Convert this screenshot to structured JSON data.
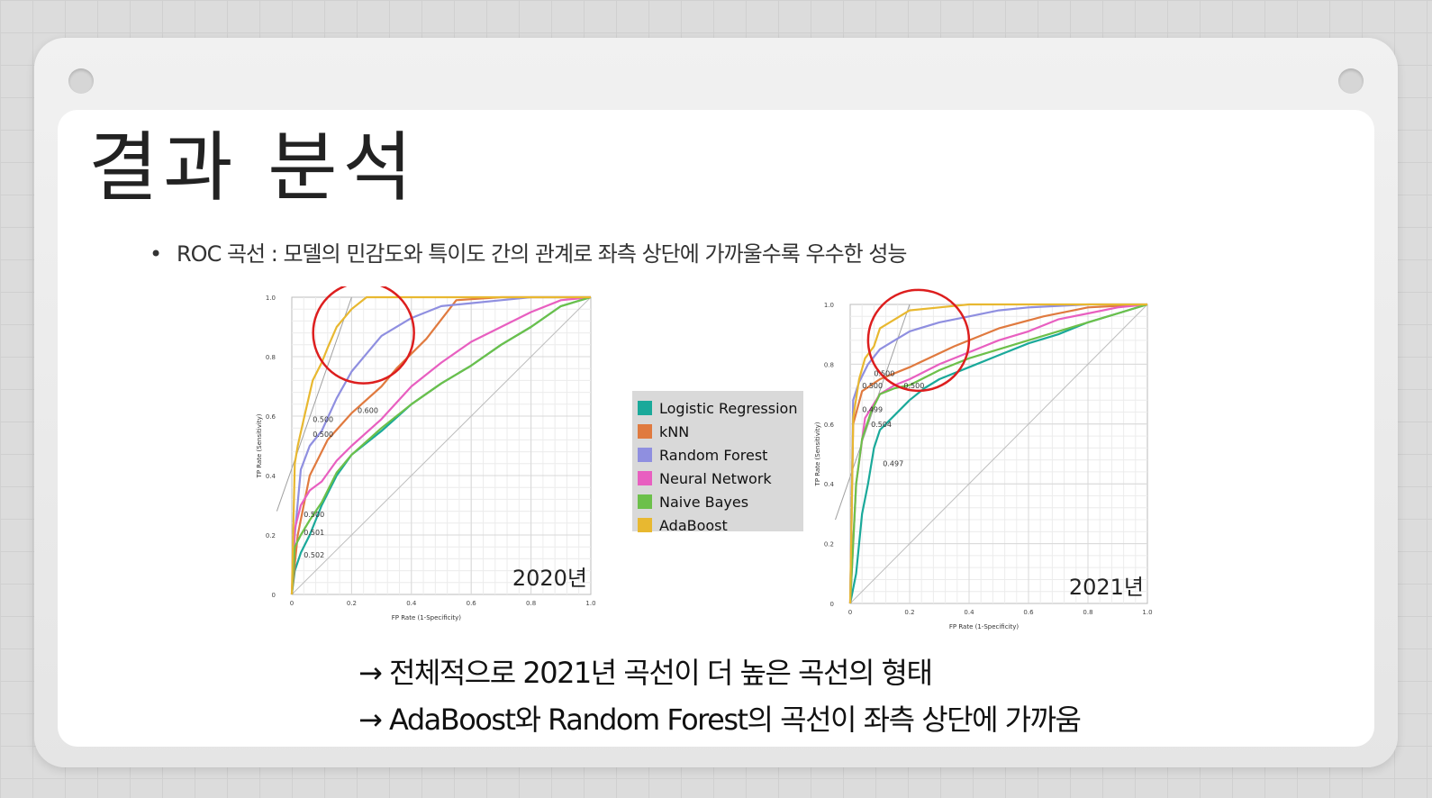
{
  "slide": {
    "title": "결과 분석",
    "bullet": "ROC 곡선 : 모델의 민감도와 특이도 간의 관계로 좌측 상단에 가까울수록 우수한 성능",
    "conclusions": [
      "→ 전체적으로 2021년 곡선이 더 높은 곡선의 형태",
      "→ AdaBoost와 Random Forest의 곡선이 좌측 상단에 가까움"
    ]
  },
  "legend": [
    {
      "label": "Logistic Regression",
      "color": "#1aa99a"
    },
    {
      "label": "kNN",
      "color": "#e07a3f"
    },
    {
      "label": "Random Forest",
      "color": "#8f8fe0"
    },
    {
      "label": "Neural Network",
      "color": "#e85fc0"
    },
    {
      "label": "Naive Bayes",
      "color": "#6cc04a"
    },
    {
      "label": "AdaBoost",
      "color": "#e8b830"
    }
  ],
  "highlight_color": "#dd1e1e",
  "chart_data": [
    {
      "type": "line",
      "year_label": "2020년",
      "xlabel": "FP Rate (1-Specificity)",
      "ylabel": "TP Rate (Sensitivity)",
      "xlim": [
        0,
        1
      ],
      "ylim": [
        0,
        1
      ],
      "xticks": [
        "0",
        "0.2",
        "0.4",
        "0.6",
        "0.8",
        "1.0"
      ],
      "yticks": [
        "0",
        "0.2",
        "0.4",
        "0.6",
        "0.8",
        "1.0"
      ],
      "grid": true,
      "annotations": [
        {
          "text": "0.600",
          "x": 0.22,
          "y": 0.61
        },
        {
          "text": "0.500",
          "x": 0.07,
          "y": 0.58
        },
        {
          "text": "0.500",
          "x": 0.07,
          "y": 0.53
        },
        {
          "text": "0.500",
          "x": 0.04,
          "y": 0.26
        },
        {
          "text": "0.501",
          "x": 0.04,
          "y": 0.2
        },
        {
          "text": "0.502",
          "x": 0.04,
          "y": 0.125
        }
      ],
      "series": [
        {
          "name": "Logistic Regression",
          "x": [
            0,
            0.01,
            0.03,
            0.06,
            0.1,
            0.15,
            0.2,
            0.3,
            0.4,
            0.5,
            0.6,
            0.7,
            0.8,
            0.9,
            1.0
          ],
          "y": [
            0,
            0.08,
            0.14,
            0.2,
            0.3,
            0.4,
            0.47,
            0.55,
            0.64,
            0.71,
            0.77,
            0.84,
            0.9,
            0.97,
            1.0
          ]
        },
        {
          "name": "kNN",
          "x": [
            0,
            0.02,
            0.06,
            0.12,
            0.2,
            0.3,
            0.35,
            0.45,
            0.55,
            0.7,
            0.85,
            1.0
          ],
          "y": [
            0,
            0.2,
            0.4,
            0.52,
            0.61,
            0.7,
            0.76,
            0.86,
            0.99,
            1.0,
            1.0,
            1.0
          ]
        },
        {
          "name": "Random Forest",
          "x": [
            0,
            0.01,
            0.03,
            0.06,
            0.1,
            0.15,
            0.2,
            0.25,
            0.3,
            0.4,
            0.5,
            0.6,
            0.7,
            0.8,
            1.0
          ],
          "y": [
            0,
            0.2,
            0.42,
            0.5,
            0.55,
            0.66,
            0.75,
            0.81,
            0.87,
            0.93,
            0.97,
            0.98,
            0.99,
            1.0,
            1.0
          ]
        },
        {
          "name": "Neural Network",
          "x": [
            0,
            0.01,
            0.03,
            0.06,
            0.1,
            0.15,
            0.2,
            0.3,
            0.4,
            0.5,
            0.6,
            0.7,
            0.8,
            0.9,
            1.0
          ],
          "y": [
            0,
            0.22,
            0.3,
            0.35,
            0.38,
            0.45,
            0.5,
            0.59,
            0.7,
            0.78,
            0.85,
            0.9,
            0.95,
            0.99,
            1.0
          ]
        },
        {
          "name": "Naive Bayes",
          "x": [
            0,
            0.01,
            0.03,
            0.06,
            0.1,
            0.15,
            0.2,
            0.3,
            0.4,
            0.5,
            0.6,
            0.7,
            0.8,
            0.9,
            1.0
          ],
          "y": [
            0,
            0.16,
            0.2,
            0.25,
            0.31,
            0.41,
            0.47,
            0.56,
            0.64,
            0.71,
            0.77,
            0.84,
            0.9,
            0.97,
            1.0
          ]
        },
        {
          "name": "AdaBoost",
          "x": [
            0,
            0.01,
            0.02,
            0.04,
            0.07,
            0.1,
            0.12,
            0.15,
            0.2,
            0.25,
            0.3,
            0.4,
            0.5,
            0.7,
            1.0
          ],
          "y": [
            0,
            0.44,
            0.5,
            0.59,
            0.72,
            0.78,
            0.83,
            0.9,
            0.96,
            1.0,
            1.0,
            1.0,
            1.0,
            1.0,
            1.0
          ]
        }
      ]
    },
    {
      "type": "line",
      "year_label": "2021년",
      "xlabel": "FP Rate (1-Specificity)",
      "ylabel": "TP Rate (Sensitivity)",
      "xlim": [
        0,
        1
      ],
      "ylim": [
        0,
        1
      ],
      "xticks": [
        "0",
        "0.2",
        "0.4",
        "0.6",
        "0.8",
        "1.0"
      ],
      "yticks": [
        "0",
        "0.2",
        "0.4",
        "0.6",
        "0.8",
        "1.0"
      ],
      "grid": true,
      "annotations": [
        {
          "text": "0.500",
          "x": 0.08,
          "y": 0.76
        },
        {
          "text": "0.500",
          "x": 0.04,
          "y": 0.72
        },
        {
          "text": "0.500",
          "x": 0.18,
          "y": 0.72
        },
        {
          "text": "0.499",
          "x": 0.04,
          "y": 0.64
        },
        {
          "text": "0.504",
          "x": 0.07,
          "y": 0.59
        },
        {
          "text": "0.497",
          "x": 0.11,
          "y": 0.46
        }
      ],
      "series": [
        {
          "name": "Logistic Regression",
          "x": [
            0,
            0.02,
            0.03,
            0.04,
            0.06,
            0.08,
            0.1,
            0.15,
            0.2,
            0.25,
            0.3,
            0.4,
            0.5,
            0.6,
            0.7,
            0.8,
            0.9,
            1.0
          ],
          "y": [
            0,
            0.1,
            0.2,
            0.3,
            0.4,
            0.52,
            0.58,
            0.63,
            0.68,
            0.72,
            0.75,
            0.79,
            0.83,
            0.87,
            0.9,
            0.94,
            0.97,
            1.0
          ]
        },
        {
          "name": "kNN",
          "x": [
            0,
            0.01,
            0.04,
            0.1,
            0.2,
            0.35,
            0.5,
            0.65,
            0.8,
            1.0
          ],
          "y": [
            0,
            0.6,
            0.71,
            0.75,
            0.79,
            0.86,
            0.92,
            0.96,
            0.99,
            1.0
          ]
        },
        {
          "name": "Random Forest",
          "x": [
            0,
            0.01,
            0.03,
            0.06,
            0.1,
            0.15,
            0.2,
            0.3,
            0.4,
            0.5,
            0.6,
            0.8,
            1.0
          ],
          "y": [
            0,
            0.68,
            0.74,
            0.8,
            0.85,
            0.88,
            0.91,
            0.94,
            0.96,
            0.98,
            0.99,
            1.0,
            1.0
          ]
        },
        {
          "name": "Neural Network",
          "x": [
            0,
            0.02,
            0.05,
            0.1,
            0.15,
            0.2,
            0.3,
            0.4,
            0.5,
            0.6,
            0.7,
            0.8,
            0.9,
            1.0
          ],
          "y": [
            0,
            0.4,
            0.62,
            0.7,
            0.73,
            0.75,
            0.8,
            0.84,
            0.88,
            0.91,
            0.95,
            0.97,
            0.99,
            1.0
          ]
        },
        {
          "name": "Naive Bayes",
          "x": [
            0,
            0.02,
            0.04,
            0.07,
            0.1,
            0.15,
            0.2,
            0.3,
            0.4,
            0.5,
            0.6,
            0.7,
            0.8,
            0.9,
            1.0
          ],
          "y": [
            0,
            0.4,
            0.55,
            0.64,
            0.7,
            0.72,
            0.73,
            0.78,
            0.82,
            0.85,
            0.88,
            0.91,
            0.94,
            0.97,
            1.0
          ]
        },
        {
          "name": "AdaBoost",
          "x": [
            0,
            0.01,
            0.03,
            0.05,
            0.08,
            0.1,
            0.15,
            0.2,
            0.3,
            0.4,
            0.6,
            0.8,
            1.0
          ],
          "y": [
            0,
            0.62,
            0.75,
            0.82,
            0.86,
            0.92,
            0.95,
            0.98,
            0.99,
            1.0,
            1.0,
            1.0,
            1.0
          ]
        }
      ]
    }
  ]
}
